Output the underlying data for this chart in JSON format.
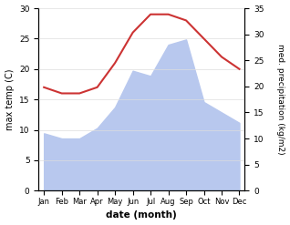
{
  "months": [
    "Jan",
    "Feb",
    "Mar",
    "Apr",
    "May",
    "Jun",
    "Jul",
    "Aug",
    "Sep",
    "Oct",
    "Nov",
    "Dec"
  ],
  "temp": [
    17,
    16,
    16,
    17,
    21,
    26,
    29,
    29,
    28,
    25,
    22,
    20
  ],
  "precip": [
    11,
    10,
    10,
    12,
    16,
    23,
    22,
    28,
    29,
    17,
    15,
    13
  ],
  "temp_color": "#cc3333",
  "precip_color": "#b8c8ee",
  "bg_color": "#ffffff",
  "xlabel": "date (month)",
  "ylabel_left": "max temp (C)",
  "ylabel_right": "med. precipitation (kg/m2)",
  "ylim_left": [
    0,
    30
  ],
  "ylim_right": [
    0,
    35
  ],
  "yticks_left": [
    0,
    5,
    10,
    15,
    20,
    25,
    30
  ],
  "yticks_right": [
    0,
    5,
    10,
    15,
    20,
    25,
    30,
    35
  ]
}
